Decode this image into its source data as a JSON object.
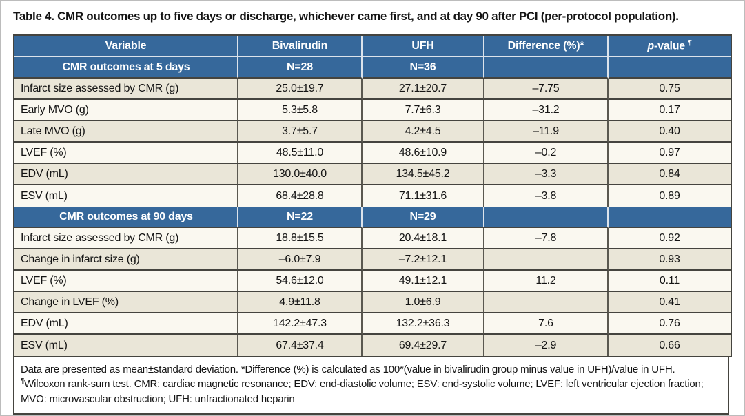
{
  "title": "Table 4. CMR outcomes up to five days or discharge, whichever came first, and at day 90 after PCI (per-protocol population).",
  "colors": {
    "header_blue": "#36689B",
    "row_beige": "#EAE6D8",
    "row_cream": "#FAF8F0",
    "border_dark": "#45443F",
    "text": "#141414"
  },
  "table": {
    "columns": [
      "Variable",
      "Bivalirudin",
      "UFH",
      "Difference (%)*"
    ],
    "p_column": {
      "italic": "p",
      "text": "-value ",
      "sup": "¶"
    },
    "sections": [
      {
        "label": "CMR outcomes at 5 days",
        "n": [
          "N=28",
          "N=36",
          "",
          ""
        ],
        "rows": [
          {
            "variable": "Infarct size assessed by CMR (g)",
            "bivalirudin": "25.0±19.7",
            "ufh": "27.1±20.7",
            "difference": "–7.75",
            "p_value": "0.75"
          },
          {
            "variable": "Early MVO (g)",
            "bivalirudin": "5.3±5.8",
            "ufh": "7.7±6.3",
            "difference": "–31.2",
            "p_value": "0.17"
          },
          {
            "variable": "Late MVO (g)",
            "bivalirudin": "3.7±5.7",
            "ufh": "4.2±4.5",
            "difference": "–11.9",
            "p_value": "0.40"
          },
          {
            "variable": "LVEF (%)",
            "bivalirudin": "48.5±11.0",
            "ufh": "48.6±10.9",
            "difference": "–0.2",
            "p_value": "0.97"
          },
          {
            "variable": "EDV (mL)",
            "bivalirudin": "130.0±40.0",
            "ufh": "134.5±45.2",
            "difference": "–3.3",
            "p_value": "0.84"
          },
          {
            "variable": "ESV (mL)",
            "bivalirudin": "68.4±28.8",
            "ufh": "71.1±31.6",
            "difference": "–3.8",
            "p_value": "0.89"
          }
        ]
      },
      {
        "label": "CMR outcomes at 90 days",
        "n": [
          "N=22",
          "N=29",
          "",
          ""
        ],
        "rows": [
          {
            "variable": "Infarct size assessed by CMR (g)",
            "bivalirudin": "18.8±15.5",
            "ufh": "20.4±18.1",
            "difference": "–7.8",
            "p_value": "0.92"
          },
          {
            "variable": "Change in infarct size (g)",
            "bivalirudin": "–6.0±7.9",
            "ufh": "–7.2±12.1",
            "difference": "",
            "p_value": "0.93"
          },
          {
            "variable": "LVEF (%)",
            "bivalirudin": "54.6±12.0",
            "ufh": "49.1±12.1",
            "difference": "11.2",
            "p_value": "0.11"
          },
          {
            "variable": "Change in LVEF (%)",
            "bivalirudin": "4.9±11.8",
            "ufh": "1.0±6.9",
            "difference": "",
            "p_value": "0.41"
          },
          {
            "variable": "EDV (mL)",
            "bivalirudin": "142.2±47.3",
            "ufh": "132.2±36.3",
            "difference": "7.6",
            "p_value": "0.76"
          },
          {
            "variable": "ESV (mL)",
            "bivalirudin": "67.4±37.4",
            "ufh": "69.4±29.7",
            "difference": "–2.9",
            "p_value": "0.66"
          }
        ]
      }
    ]
  },
  "footnote": {
    "part1": "Data are presented as mean±standard deviation. *Difference (%) is calculated as 100*(value in bivalirudin group minus value in UFH)/value in UFH.",
    "sup": "¶",
    "part2": "Wilcoxon rank-sum test. CMR: cardiac magnetic resonance; EDV: end-diastolic volume; ESV: end-systolic volume; LVEF: left ventricular ejection fraction; MVO: microvascular obstruction; UFH: unfractionated heparin"
  }
}
